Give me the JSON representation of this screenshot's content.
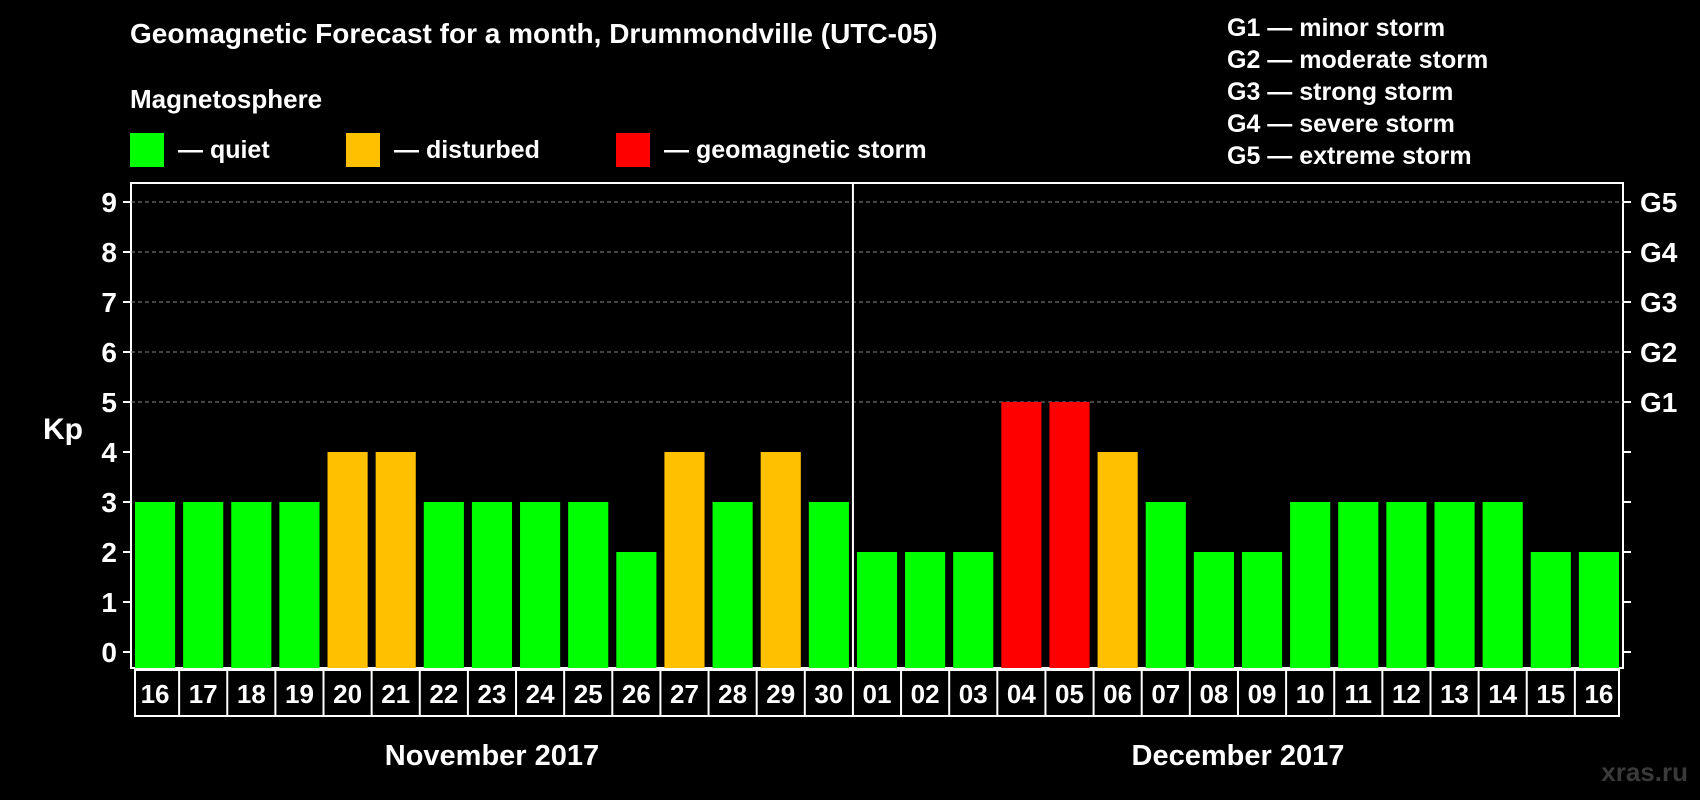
{
  "title": "Geomagnetic Forecast for a month, Drummondville (UTC-05)",
  "magnetosphere_label": "Magnetosphere",
  "legend": [
    {
      "label": "— quiet",
      "color": "#00ff00"
    },
    {
      "label": "— disturbed",
      "color": "#ffc000"
    },
    {
      "label": "— geomagnetic storm",
      "color": "#ff0000"
    }
  ],
  "g_levels": [
    "G1 — minor storm",
    "G2 — moderate storm",
    "G3 — strong storm",
    "G4 — severe storm",
    "G5 — extreme storm"
  ],
  "watermark": "xras.ru",
  "chart_data": {
    "type": "bar",
    "ylabel": "Kp",
    "ylim": [
      0,
      9
    ],
    "yticks": [
      0,
      1,
      2,
      3,
      4,
      5,
      6,
      7,
      8,
      9
    ],
    "right_axis_labels": [
      {
        "y": 5,
        "label": "G1"
      },
      {
        "y": 6,
        "label": "G2"
      },
      {
        "y": 7,
        "label": "G3"
      },
      {
        "y": 8,
        "label": "G4"
      },
      {
        "y": 9,
        "label": "G5"
      }
    ],
    "categories": [
      "16",
      "17",
      "18",
      "19",
      "20",
      "21",
      "22",
      "23",
      "24",
      "25",
      "26",
      "27",
      "28",
      "29",
      "30",
      "01",
      "02",
      "03",
      "04",
      "05",
      "06",
      "07",
      "08",
      "09",
      "10",
      "11",
      "12",
      "13",
      "14",
      "15",
      "16"
    ],
    "values": [
      3,
      3,
      3,
      3,
      4,
      4,
      3,
      3,
      3,
      3,
      2,
      4,
      3,
      4,
      3,
      2,
      2,
      2,
      5,
      5,
      4,
      3,
      2,
      2,
      3,
      3,
      3,
      3,
      3,
      2,
      2
    ],
    "levels": [
      "quiet",
      "quiet",
      "quiet",
      "quiet",
      "disturbed",
      "disturbed",
      "quiet",
      "quiet",
      "quiet",
      "quiet",
      "quiet",
      "disturbed",
      "quiet",
      "disturbed",
      "quiet",
      "quiet",
      "quiet",
      "quiet",
      "storm",
      "storm",
      "disturbed",
      "quiet",
      "quiet",
      "quiet",
      "quiet",
      "quiet",
      "quiet",
      "quiet",
      "quiet",
      "quiet",
      "quiet"
    ],
    "level_colors": {
      "quiet": "#00ff00",
      "disturbed": "#ffc000",
      "storm": "#ff0000"
    },
    "months": [
      {
        "label": "November 2017",
        "count": 15
      },
      {
        "label": "December 2017",
        "count": 16
      }
    ],
    "grid": true
  }
}
